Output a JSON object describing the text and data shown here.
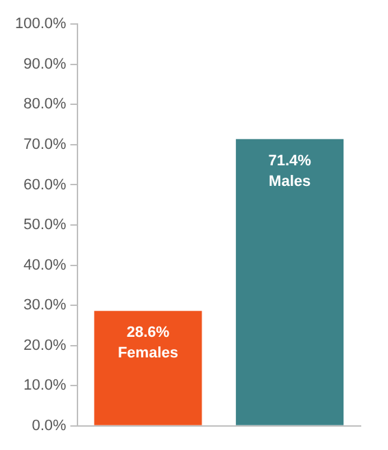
{
  "chart_data": {
    "type": "bar",
    "categories": [
      "Females",
      "Males"
    ],
    "values": [
      28.6,
      71.4
    ],
    "colors": [
      "#f0541e",
      "#3d8389"
    ],
    "value_labels": [
      "28.6%",
      "71.4%"
    ],
    "ylim": [
      0,
      100
    ],
    "yticks": [
      {
        "value": 0,
        "label": "0.0%"
      },
      {
        "value": 10,
        "label": "10.0%"
      },
      {
        "value": 20,
        "label": "20.0%"
      },
      {
        "value": 30,
        "label": "30.0%"
      },
      {
        "value": 40,
        "label": "40.0%"
      },
      {
        "value": 50,
        "label": "50.0%"
      },
      {
        "value": 60,
        "label": "60.0%"
      },
      {
        "value": 70,
        "label": "70.0%"
      },
      {
        "value": 80,
        "label": "80.0%"
      },
      {
        "value": 90,
        "label": "90.0%"
      },
      {
        "value": 100,
        "label": "100.0%"
      }
    ],
    "tick_labels": "y",
    "grid": false,
    "legend": false
  }
}
